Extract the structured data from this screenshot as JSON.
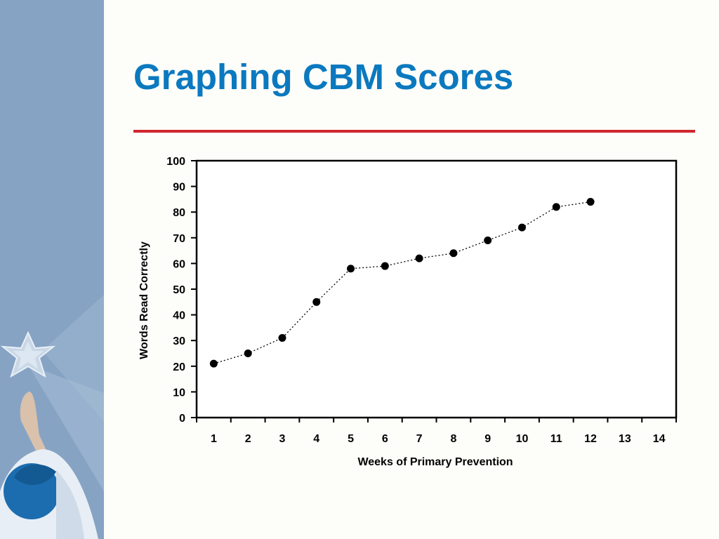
{
  "slide": {
    "title": "Graphing CBM Scores",
    "title_color": "#0b79bf",
    "rule_color": "#d1262e",
    "side_panel_color": "#86a3c4",
    "side_panel_icon": "star-icon"
  },
  "chart_data": {
    "type": "line",
    "title": "",
    "xlabel": "Weeks of Primary Prevention",
    "ylabel": "Words Read Correctly",
    "x_ticks": [
      1,
      2,
      3,
      4,
      5,
      6,
      7,
      8,
      9,
      10,
      11,
      12,
      13,
      14
    ],
    "y_ticks": [
      0,
      10,
      20,
      30,
      40,
      50,
      60,
      70,
      80,
      90,
      100
    ],
    "xlim": [
      0.5,
      14.5
    ],
    "ylim": [
      0,
      100
    ],
    "grid": false,
    "legend": "none",
    "line_style": "dotted",
    "marker_color": "#000000",
    "series": [
      {
        "x": [
          1,
          2,
          3,
          4,
          5,
          6,
          7,
          8,
          9,
          10,
          11,
          12
        ],
        "values": [
          21,
          25,
          31,
          45,
          58,
          59,
          62,
          64,
          69,
          74,
          82,
          84
        ]
      }
    ]
  }
}
